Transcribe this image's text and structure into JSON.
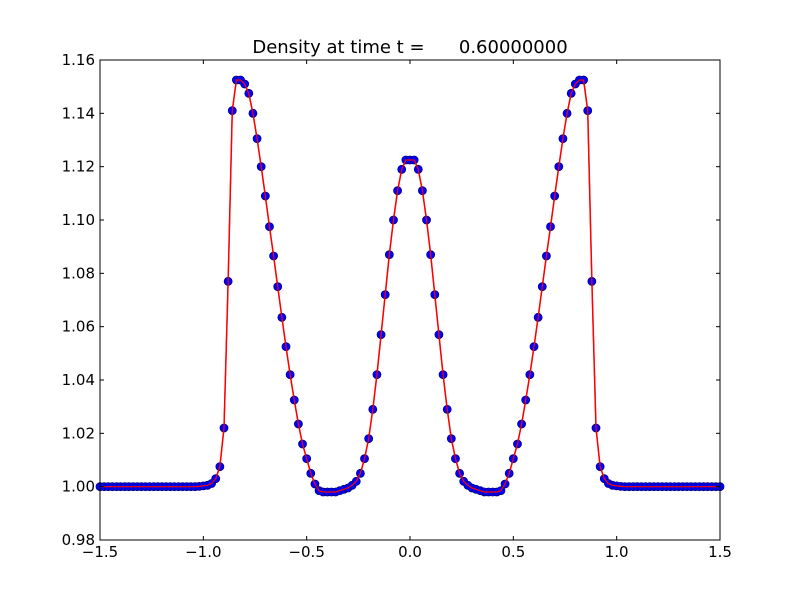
{
  "chart_data": {
    "type": "line",
    "title": "Density at time t =      0.60000000",
    "xlabel": "",
    "ylabel": "",
    "xlim": [
      -1.5,
      1.5
    ],
    "ylim": [
      0.98,
      1.16
    ],
    "xticks": [
      -1.5,
      -1.0,
      -0.5,
      0.0,
      0.5,
      1.0,
      1.5
    ],
    "xtick_labels": [
      "−1.5",
      "−1.0",
      "−0.5",
      "0.0",
      "0.5",
      "1.0",
      "1.5"
    ],
    "yticks": [
      0.98,
      1.0,
      1.02,
      1.04,
      1.06,
      1.08,
      1.1,
      1.12,
      1.14,
      1.16
    ],
    "ytick_labels": [
      "0.98",
      "1.00",
      "1.02",
      "1.04",
      "1.06",
      "1.08",
      "1.10",
      "1.12",
      "1.14",
      "1.16"
    ],
    "grid": false,
    "series": [
      {
        "marker": "circle",
        "color": "#0000ff",
        "marker_edge": "#000080",
        "x": [
          0.0,
          0.02,
          0.04,
          0.06,
          0.08,
          0.1,
          0.12,
          0.14,
          0.16,
          0.18,
          0.2,
          0.22,
          0.24,
          0.26,
          0.28,
          0.3,
          0.32,
          0.34,
          0.36,
          0.38,
          0.4,
          0.42,
          0.44,
          0.46,
          0.48,
          0.5,
          0.52,
          0.54,
          0.56,
          0.58,
          0.6,
          0.62,
          0.64,
          0.66,
          0.68,
          0.7,
          0.72,
          0.74,
          0.76,
          0.78,
          0.8,
          0.82,
          0.84,
          0.86,
          0.88,
          0.9,
          0.92,
          0.94,
          0.96,
          0.98,
          1.0,
          1.02,
          1.04,
          1.06,
          1.08,
          1.1,
          1.12,
          1.14,
          1.16,
          1.18,
          1.2,
          1.22,
          1.24,
          1.26,
          1.28,
          1.3,
          1.32,
          1.34,
          1.36,
          1.38,
          1.4,
          1.42,
          1.44,
          1.46,
          1.48,
          1.5
        ],
        "y": [
          1.1225,
          1.1225,
          1.119,
          1.111,
          1.1,
          1.087,
          1.072,
          1.057,
          1.042,
          1.029,
          1.018,
          1.0105,
          1.005,
          1.002,
          1.0005,
          0.9995,
          0.999,
          0.9985,
          0.998,
          0.998,
          0.998,
          0.998,
          0.9985,
          1.001,
          1.005,
          1.0105,
          1.016,
          1.0235,
          1.0325,
          1.042,
          1.0525,
          1.0635,
          1.075,
          1.0865,
          1.0975,
          1.109,
          1.12,
          1.1305,
          1.14,
          1.1475,
          1.151,
          1.1525,
          1.1525,
          1.141,
          1.077,
          1.022,
          1.0075,
          1.003,
          1.0012,
          1.0005,
          1.0003,
          1.0001,
          1.0,
          1.0,
          1.0,
          1.0,
          1.0,
          1.0,
          1.0,
          1.0,
          1.0,
          1.0,
          1.0,
          1.0,
          1.0,
          1.0,
          1.0,
          1.0,
          1.0,
          1.0,
          1.0,
          1.0,
          1.0,
          1.0,
          1.0,
          1.0
        ],
        "symmetric_about_zero": true
      },
      {
        "line": "solid",
        "color": "#ff0000",
        "x": [
          0.0,
          0.02,
          0.04,
          0.06,
          0.08,
          0.1,
          0.12,
          0.14,
          0.16,
          0.18,
          0.2,
          0.22,
          0.24,
          0.26,
          0.28,
          0.3,
          0.32,
          0.34,
          0.36,
          0.38,
          0.4,
          0.42,
          0.44,
          0.46,
          0.48,
          0.5,
          0.52,
          0.54,
          0.56,
          0.58,
          0.6,
          0.62,
          0.64,
          0.66,
          0.68,
          0.7,
          0.72,
          0.74,
          0.76,
          0.78,
          0.8,
          0.82,
          0.84,
          0.86,
          0.88,
          0.9,
          0.92,
          0.94,
          0.96,
          0.98,
          1.0,
          1.02,
          1.04,
          1.06,
          1.08,
          1.1,
          1.12,
          1.14,
          1.16,
          1.18,
          1.2,
          1.22,
          1.24,
          1.26,
          1.28,
          1.3,
          1.32,
          1.34,
          1.36,
          1.38,
          1.4,
          1.42,
          1.44,
          1.46,
          1.48,
          1.5
        ],
        "y": [
          1.1225,
          1.1225,
          1.119,
          1.111,
          1.1,
          1.087,
          1.072,
          1.057,
          1.042,
          1.029,
          1.018,
          1.0105,
          1.005,
          1.002,
          1.0005,
          0.9995,
          0.999,
          0.9985,
          0.998,
          0.998,
          0.998,
          0.998,
          0.9985,
          1.001,
          1.005,
          1.0105,
          1.016,
          1.0235,
          1.0325,
          1.042,
          1.0525,
          1.0635,
          1.075,
          1.0865,
          1.0975,
          1.109,
          1.12,
          1.1305,
          1.14,
          1.1475,
          1.151,
          1.1525,
          1.1525,
          1.141,
          1.077,
          1.022,
          1.0075,
          1.003,
          1.0012,
          1.0005,
          1.0003,
          1.0001,
          1.0,
          1.0,
          1.0,
          1.0,
          1.0,
          1.0,
          1.0,
          1.0,
          1.0,
          1.0,
          1.0,
          1.0,
          1.0,
          1.0,
          1.0,
          1.0,
          1.0,
          1.0,
          1.0,
          1.0,
          1.0,
          1.0,
          1.0,
          1.0
        ],
        "symmetric_about_zero": true
      }
    ]
  }
}
